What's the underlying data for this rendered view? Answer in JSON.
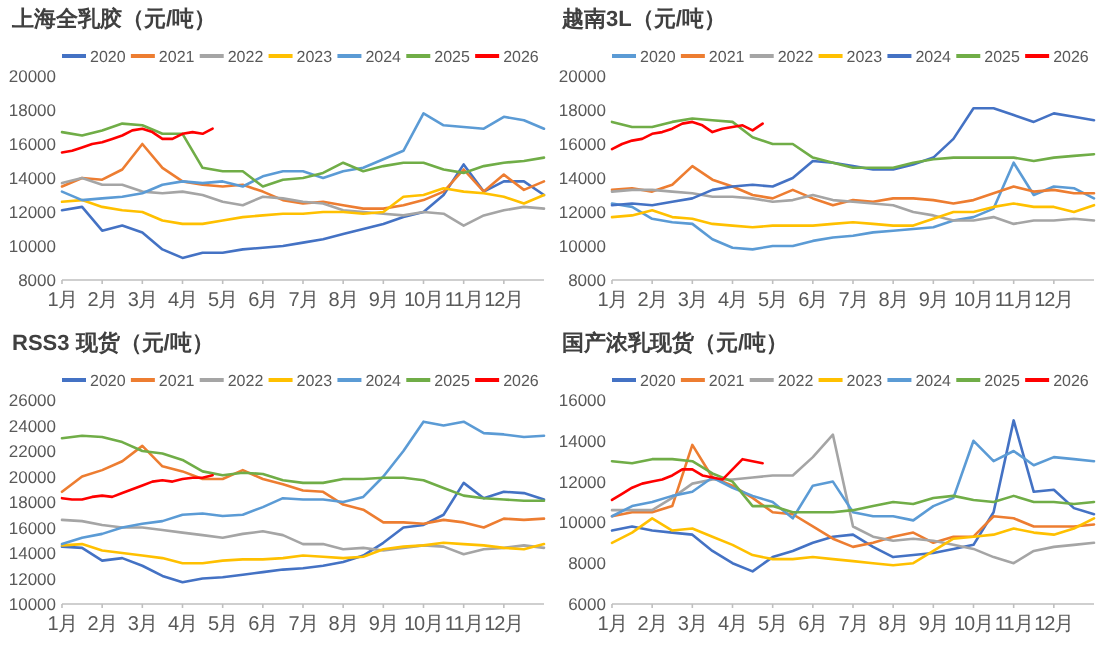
{
  "chart_data": [
    {
      "type": "line",
      "title": "上海全乳胶（元/吨）",
      "legend": "top",
      "x": [
        1,
        1.5,
        2,
        2.5,
        3,
        3.5,
        4,
        4.5,
        5,
        5.5,
        6,
        6.5,
        7,
        7.5,
        8,
        8.5,
        9,
        9.5,
        10,
        10.5,
        11,
        11.5,
        12,
        12.5,
        13
      ],
      "xlim": [
        1,
        13
      ],
      "xticks": [
        {
          "value": 1,
          "label": "1月"
        },
        {
          "value": 2,
          "label": "2月"
        },
        {
          "value": 3,
          "label": "3月"
        },
        {
          "value": 4,
          "label": "4月"
        },
        {
          "value": 5,
          "label": "5月"
        },
        {
          "value": 6,
          "label": "6月"
        },
        {
          "value": 7,
          "label": "7月"
        },
        {
          "value": 8,
          "label": "8月"
        },
        {
          "value": 9,
          "label": "9月"
        },
        {
          "value": 10,
          "label": "10月"
        },
        {
          "value": 11,
          "label": "11月"
        },
        {
          "value": 12,
          "label": "12月"
        }
      ],
      "ylim": [
        8000,
        20000
      ],
      "yticks": [
        8000,
        10000,
        12000,
        14000,
        16000,
        18000,
        20000
      ],
      "series": [
        {
          "name": "2020",
          "color": "#4472c4",
          "values": [
            12100,
            12300,
            10900,
            11200,
            10800,
            9800,
            9300,
            9600,
            9600,
            9800,
            9900,
            10000,
            10200,
            10400,
            10700,
            11000,
            11300,
            11700,
            12000,
            13000,
            14800,
            13200,
            13800,
            13800,
            13000
          ]
        },
        {
          "name": "2021",
          "color": "#ed7d31",
          "values": [
            13500,
            14000,
            13900,
            14500,
            16000,
            14600,
            13800,
            13600,
            13500,
            13600,
            13200,
            12700,
            12500,
            12600,
            12400,
            12200,
            12200,
            12400,
            12700,
            13200,
            14500,
            13200,
            14200,
            13300,
            13800
          ]
        },
        {
          "name": "2022",
          "color": "#a5a5a5",
          "values": [
            13700,
            14000,
            13600,
            13600,
            13200,
            13100,
            13200,
            13000,
            12600,
            12400,
            12900,
            12800,
            12600,
            12500,
            12100,
            12000,
            11900,
            11800,
            12000,
            11900,
            11200,
            11800,
            12100,
            12300,
            12200
          ]
        },
        {
          "name": "2023",
          "color": "#ffc000",
          "values": [
            12600,
            12700,
            12300,
            12100,
            12000,
            11500,
            11300,
            11300,
            11500,
            11700,
            11800,
            11900,
            11900,
            12000,
            12000,
            11900,
            12000,
            12900,
            13000,
            13400,
            13200,
            13100,
            12900,
            12500,
            13000
          ]
        },
        {
          "name": "2024",
          "color": "#5b9bd5",
          "values": [
            13200,
            12700,
            12800,
            12900,
            13100,
            13600,
            13800,
            13700,
            13800,
            13500,
            14100,
            14400,
            14400,
            14000,
            14400,
            14600,
            15100,
            15600,
            17800,
            17100,
            17000,
            16900,
            17600,
            17400,
            16900
          ]
        },
        {
          "name": "2025",
          "color": "#70ad47",
          "values": [
            16700,
            16500,
            16800,
            17200,
            17100,
            16600,
            16600,
            14600,
            14400,
            14400,
            13500,
            13900,
            14000,
            14300,
            14900,
            14400,
            14700,
            14900,
            14900,
            14500,
            14300,
            14700,
            14900,
            15000,
            15200
          ]
        },
        {
          "name": "2026",
          "color": "#ff0000",
          "x": [
            1,
            1.25,
            1.5,
            1.75,
            2,
            2.25,
            2.5,
            2.75,
            3,
            3.25,
            3.5,
            3.75,
            4,
            4.25,
            4.5,
            4.75
          ],
          "values": [
            15500,
            15600,
            15800,
            16000,
            16100,
            16300,
            16500,
            16800,
            16900,
            16700,
            16300,
            16300,
            16600,
            16700,
            16600,
            16900
          ]
        }
      ]
    },
    {
      "type": "line",
      "title": "越南3L（元/吨）",
      "legend": "top",
      "x": [
        1,
        1.5,
        2,
        2.5,
        3,
        3.5,
        4,
        4.5,
        5,
        5.5,
        6,
        6.5,
        7,
        7.5,
        8,
        8.5,
        9,
        9.5,
        10,
        10.5,
        11,
        11.5,
        12,
        12.5,
        13
      ],
      "xlim": [
        1,
        13
      ],
      "xticks": [
        {
          "value": 1,
          "label": "1月"
        },
        {
          "value": 2,
          "label": "2月"
        },
        {
          "value": 3,
          "label": "3月"
        },
        {
          "value": 4,
          "label": "4月"
        },
        {
          "value": 5,
          "label": "5月"
        },
        {
          "value": 6,
          "label": "6月"
        },
        {
          "value": 7,
          "label": "7月"
        },
        {
          "value": 8,
          "label": "8月"
        },
        {
          "value": 9,
          "label": "9月"
        },
        {
          "value": 10,
          "label": "10月"
        },
        {
          "value": 11,
          "label": "11月"
        },
        {
          "value": 12,
          "label": "12月"
        }
      ],
      "ylim": [
        8000,
        20000
      ],
      "yticks": [
        8000,
        10000,
        12000,
        14000,
        16000,
        18000,
        20000
      ],
      "series": [
        {
          "name": "2020",
          "color": "#5b9bd5",
          "values": [
            12500,
            12300,
            11600,
            11400,
            11300,
            10400,
            9900,
            9800,
            10000,
            10000,
            10300,
            10500,
            10600,
            10800,
            10900,
            11000,
            11100,
            11500,
            11700,
            12200,
            14900,
            13000,
            13500,
            13400,
            12800
          ]
        },
        {
          "name": "2021",
          "color": "#ed7d31",
          "values": [
            13300,
            13400,
            13200,
            13600,
            14700,
            13900,
            13500,
            13000,
            12800,
            13300,
            12800,
            12400,
            12700,
            12600,
            12800,
            12800,
            12700,
            12500,
            12700,
            13100,
            13500,
            13200,
            13300,
            13100,
            13100
          ]
        },
        {
          "name": "2022",
          "color": "#a5a5a5",
          "values": [
            13200,
            13300,
            13300,
            13200,
            13100,
            12900,
            12900,
            12800,
            12600,
            12700,
            13000,
            12700,
            12600,
            12500,
            12400,
            12000,
            11800,
            11500,
            11500,
            11700,
            11300,
            11500,
            11500,
            11600,
            11500
          ]
        },
        {
          "name": "2023",
          "color": "#ffc000",
          "values": [
            11700,
            11800,
            12100,
            11700,
            11600,
            11300,
            11200,
            11100,
            11200,
            11200,
            11200,
            11300,
            11400,
            11300,
            11200,
            11200,
            11600,
            12000,
            12000,
            12300,
            12500,
            12300,
            12300,
            12000,
            12400
          ]
        },
        {
          "name": "2024",
          "color": "#4472c4",
          "values": [
            12400,
            12500,
            12400,
            12600,
            12800,
            13300,
            13500,
            13600,
            13500,
            14000,
            15000,
            14900,
            14700,
            14500,
            14500,
            14800,
            15200,
            16300,
            18100,
            18100,
            17700,
            17300,
            17800,
            17600,
            17400
          ]
        },
        {
          "name": "2025",
          "color": "#70ad47",
          "values": [
            17300,
            17000,
            17000,
            17300,
            17500,
            17400,
            17300,
            16400,
            16000,
            16000,
            15200,
            14900,
            14600,
            14600,
            14600,
            14900,
            15100,
            15200,
            15200,
            15200,
            15200,
            15000,
            15200,
            15300,
            15400
          ]
        },
        {
          "name": "2026",
          "color": "#ff0000",
          "x": [
            1,
            1.25,
            1.5,
            1.75,
            2,
            2.25,
            2.5,
            2.75,
            3,
            3.25,
            3.5,
            3.75,
            4,
            4.25,
            4.5,
            4.75
          ],
          "values": [
            15700,
            16000,
            16200,
            16300,
            16600,
            16700,
            16900,
            17200,
            17300,
            17100,
            16700,
            16900,
            17000,
            17100,
            16800,
            17200
          ]
        }
      ]
    },
    {
      "type": "line",
      "title": "RSS3 现货（元/吨）",
      "legend": "top",
      "x": [
        1,
        1.5,
        2,
        2.5,
        3,
        3.5,
        4,
        4.5,
        5,
        5.5,
        6,
        6.5,
        7,
        7.5,
        8,
        8.5,
        9,
        9.5,
        10,
        10.5,
        11,
        11.5,
        12,
        12.5,
        13
      ],
      "xlim": [
        1,
        13
      ],
      "xticks": [
        {
          "value": 1,
          "label": "1月"
        },
        {
          "value": 2,
          "label": "2月"
        },
        {
          "value": 3,
          "label": "3月"
        },
        {
          "value": 4,
          "label": "4月"
        },
        {
          "value": 5,
          "label": "5月"
        },
        {
          "value": 6,
          "label": "6月"
        },
        {
          "value": 7,
          "label": "7月"
        },
        {
          "value": 8,
          "label": "8月"
        },
        {
          "value": 9,
          "label": "9月"
        },
        {
          "value": 10,
          "label": "10月"
        },
        {
          "value": 11,
          "label": "11月"
        },
        {
          "value": 12,
          "label": "12月"
        }
      ],
      "ylim": [
        10000,
        26000
      ],
      "yticks": [
        10000,
        12000,
        14000,
        16000,
        18000,
        20000,
        22000,
        24000,
        26000
      ],
      "series": [
        {
          "name": "2020",
          "color": "#4472c4",
          "values": [
            14500,
            14400,
            13400,
            13600,
            13000,
            12200,
            11700,
            12000,
            12100,
            12300,
            12500,
            12700,
            12800,
            13000,
            13300,
            13800,
            14800,
            16000,
            16200,
            17000,
            19500,
            18300,
            18800,
            18700,
            18200
          ]
        },
        {
          "name": "2021",
          "color": "#ed7d31",
          "values": [
            18800,
            20000,
            20500,
            21200,
            22400,
            20800,
            20400,
            19800,
            19800,
            20500,
            19800,
            19400,
            18900,
            18800,
            17800,
            17400,
            16400,
            16400,
            16300,
            16600,
            16400,
            16000,
            16700,
            16600,
            16700
          ]
        },
        {
          "name": "2022",
          "color": "#a5a5a5",
          "values": [
            16600,
            16500,
            16200,
            16000,
            16000,
            15800,
            15600,
            15400,
            15200,
            15500,
            15700,
            15400,
            14700,
            14700,
            14300,
            14400,
            14200,
            14400,
            14600,
            14500,
            13900,
            14300,
            14400,
            14600,
            14400
          ]
        },
        {
          "name": "2023",
          "color": "#ffc000",
          "values": [
            14600,
            14700,
            14200,
            14000,
            13800,
            13600,
            13200,
            13200,
            13400,
            13500,
            13500,
            13600,
            13800,
            13700,
            13600,
            13700,
            14300,
            14500,
            14600,
            14800,
            14700,
            14600,
            14400,
            14300,
            14700
          ]
        },
        {
          "name": "2024",
          "color": "#5b9bd5",
          "values": [
            14700,
            15200,
            15500,
            16000,
            16300,
            16500,
            17000,
            17100,
            16900,
            17000,
            17600,
            18300,
            18200,
            18200,
            18000,
            18400,
            20000,
            22000,
            24300,
            24000,
            24300,
            23400,
            23300,
            23100,
            23200
          ]
        },
        {
          "name": "2025",
          "color": "#70ad47",
          "values": [
            23000,
            23200,
            23100,
            22700,
            22000,
            21800,
            21300,
            20400,
            20100,
            20300,
            20200,
            19700,
            19500,
            19500,
            19800,
            19800,
            19900,
            19900,
            19700,
            19100,
            18500,
            18300,
            18200,
            18100,
            18100
          ]
        },
        {
          "name": "2026",
          "color": "#ff0000",
          "x": [
            1,
            1.25,
            1.5,
            1.75,
            2,
            2.25,
            2.5,
            2.75,
            3,
            3.25,
            3.5,
            3.75,
            4,
            4.25,
            4.5,
            4.75
          ],
          "values": [
            18300,
            18200,
            18200,
            18400,
            18500,
            18400,
            18700,
            19000,
            19300,
            19600,
            19700,
            19600,
            19800,
            19900,
            19900,
            20100
          ]
        }
      ]
    },
    {
      "type": "line",
      "title": "国产浓乳现货（元/吨）",
      "legend": "top",
      "x": [
        1,
        1.5,
        2,
        2.5,
        3,
        3.5,
        4,
        4.5,
        5,
        5.5,
        6,
        6.5,
        7,
        7.5,
        8,
        8.5,
        9,
        9.5,
        10,
        10.5,
        11,
        11.5,
        12,
        12.5,
        13
      ],
      "xlim": [
        1,
        13
      ],
      "xticks": [
        {
          "value": 1,
          "label": "1月"
        },
        {
          "value": 2,
          "label": "2月"
        },
        {
          "value": 3,
          "label": "3月"
        },
        {
          "value": 4,
          "label": "4月"
        },
        {
          "value": 5,
          "label": "5月"
        },
        {
          "value": 6,
          "label": "6月"
        },
        {
          "value": 7,
          "label": "7月"
        },
        {
          "value": 8,
          "label": "8月"
        },
        {
          "value": 9,
          "label": "9月"
        },
        {
          "value": 10,
          "label": "10月"
        },
        {
          "value": 11,
          "label": "11月"
        },
        {
          "value": 12,
          "label": "12月"
        }
      ],
      "ylim": [
        6000,
        16000
      ],
      "yticks": [
        6000,
        8000,
        10000,
        12000,
        14000,
        16000
      ],
      "series": [
        {
          "name": "2020",
          "color": "#4472c4",
          "values": [
            9600,
            9800,
            9600,
            9500,
            9400,
            8600,
            8000,
            7600,
            8300,
            8600,
            9000,
            9300,
            9400,
            8800,
            8300,
            8400,
            8500,
            8700,
            8900,
            10500,
            15000,
            11500,
            11600,
            10700,
            10400
          ]
        },
        {
          "name": "2021",
          "color": "#ed7d31",
          "values": [
            10300,
            10500,
            10500,
            10800,
            13800,
            12200,
            11800,
            11200,
            10500,
            10400,
            9800,
            9200,
            8800,
            9000,
            9300,
            9500,
            9000,
            9300,
            9300,
            10300,
            10200,
            9800,
            9800,
            9800,
            9900
          ]
        },
        {
          "name": "2022",
          "color": "#a5a5a5",
          "values": [
            10600,
            10600,
            10600,
            11200,
            11900,
            12100,
            12100,
            12200,
            12300,
            12300,
            13200,
            14300,
            9800,
            9300,
            9100,
            9200,
            9100,
            8900,
            8700,
            8300,
            8000,
            8600,
            8800,
            8900,
            9000
          ]
        },
        {
          "name": "2023",
          "color": "#ffc000",
          "values": [
            9000,
            9500,
            10200,
            9600,
            9700,
            9300,
            8900,
            8400,
            8200,
            8200,
            8300,
            8200,
            8100,
            8000,
            7900,
            8000,
            8600,
            9200,
            9300,
            9400,
            9700,
            9500,
            9400,
            9700,
            10200
          ]
        },
        {
          "name": "2024",
          "color": "#5b9bd5",
          "values": [
            10300,
            10800,
            11000,
            11300,
            11500,
            12200,
            11700,
            11300,
            11000,
            10200,
            11800,
            12000,
            10500,
            10300,
            10300,
            10100,
            10800,
            11200,
            14000,
            13000,
            13500,
            12800,
            13200,
            13100,
            13000
          ]
        },
        {
          "name": "2025",
          "color": "#70ad47",
          "values": [
            13000,
            12900,
            13100,
            13100,
            13000,
            12400,
            12000,
            10800,
            10800,
            10500,
            10500,
            10500,
            10600,
            10800,
            11000,
            10900,
            11200,
            11300,
            11100,
            11000,
            11300,
            11000,
            11000,
            10900,
            11000
          ]
        },
        {
          "name": "2026",
          "color": "#ff0000",
          "x": [
            1,
            1.25,
            1.5,
            1.75,
            2,
            2.25,
            2.5,
            2.75,
            3,
            3.25,
            3.5,
            3.75,
            4,
            4.25,
            4.5,
            4.75
          ],
          "values": [
            11100,
            11400,
            11700,
            11900,
            12000,
            12100,
            12300,
            12600,
            12600,
            12300,
            12200,
            12100,
            12600,
            13100,
            13000,
            12900
          ]
        }
      ]
    }
  ]
}
